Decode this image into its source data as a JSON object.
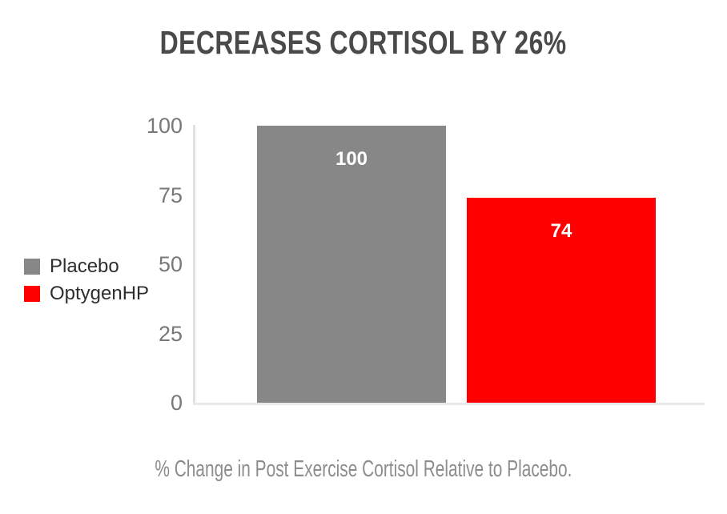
{
  "title": "DECREASES CORTISOL BY 26%",
  "caption": "% Change in Post Exercise Cortisol Relative to Placebo.",
  "legend": {
    "items": [
      {
        "label": "Placebo",
        "color": "#878787"
      },
      {
        "label": "OptygenHP",
        "color": "#ff0000"
      }
    ]
  },
  "colors": {
    "title_text": "#4a4a4a",
    "axis_tick_text": "#787878",
    "legend_text": "#2e2e2e",
    "caption_text": "#8d8d8d",
    "y_axis_line": "#e1e1e1",
    "x_axis_line": "#e9e9e9",
    "bar_value_text": "#ffffff",
    "placebo_bar": "#878787",
    "optygenhp_bar": "#ff0000"
  },
  "chart_data": {
    "type": "bar",
    "categories": [
      "Placebo",
      "OptygenHP"
    ],
    "values": [
      100,
      74
    ],
    "bar_labels": [
      "100",
      "74"
    ],
    "bar_colors": [
      "#878787",
      "#ff0000"
    ],
    "title": "DECREASES CORTISOL BY 26%",
    "xlabel": "% Change in Post Exercise Cortisol Relative to Placebo.",
    "ylabel": "",
    "ylim": [
      0,
      100
    ],
    "yticks": [
      0,
      25,
      50,
      75,
      100
    ],
    "grid": false,
    "legend_position": "left",
    "value_label_position": "inside-top",
    "value_label_color": "#ffffff"
  }
}
